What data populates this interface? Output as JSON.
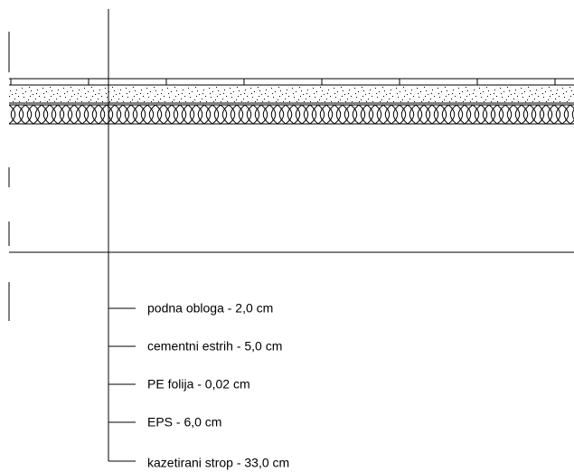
{
  "layers": {
    "labels": [
      "podna obloga - 2,0 cm",
      "cementni estrih - 5,0 cm",
      "PE folija - 0,02 cm",
      "EPS - 6,0 cm",
      "kazetirani strop - 33,0 cm"
    ]
  }
}
